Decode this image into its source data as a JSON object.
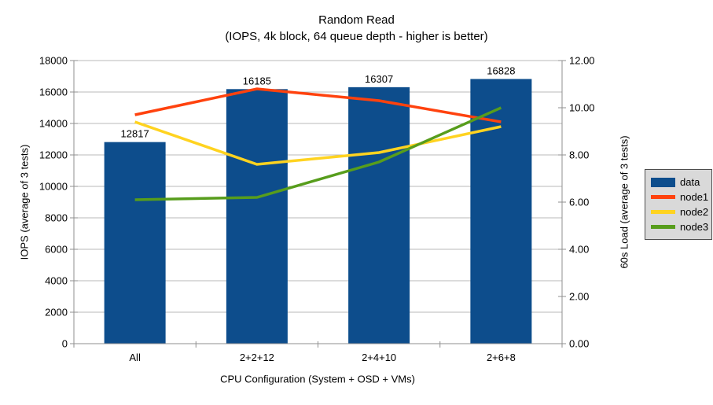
{
  "title": "Random Read",
  "subtitle": "(IOPS, 4k block, 64 queue depth - higher is better)",
  "chart_data": {
    "type": "combo-bar-line",
    "categories": [
      "All",
      "2+2+12",
      "2+4+10",
      "2+6+8"
    ],
    "bar_series": {
      "name": "data",
      "axis": "left",
      "color": "#0d4d8c",
      "values": [
        12817,
        16185,
        16307,
        16828
      ],
      "data_labels": [
        "12817",
        "16185",
        "16307",
        "16828"
      ]
    },
    "line_series": [
      {
        "name": "node1",
        "axis": "right",
        "color": "#ff420e",
        "values": [
          9.7,
          10.8,
          10.3,
          9.4
        ]
      },
      {
        "name": "node2",
        "axis": "right",
        "color": "#ffd320",
        "values": [
          9.4,
          7.6,
          8.1,
          9.2
        ]
      },
      {
        "name": "node3",
        "axis": "right",
        "color": "#579d1c",
        "values": [
          6.1,
          6.2,
          7.7,
          10.0
        ]
      }
    ],
    "left_axis": {
      "label": "IOPS (average of 3 tests)",
      "min": 0,
      "max": 18000,
      "step": 2000,
      "tick_labels": [
        "0",
        "2000",
        "4000",
        "6000",
        "8000",
        "10000",
        "12000",
        "14000",
        "16000",
        "18000"
      ]
    },
    "right_axis": {
      "label": "60s Load (average of 3 tests)",
      "min": 0,
      "max": 12,
      "step": 2,
      "tick_labels": [
        "0.00",
        "2.00",
        "4.00",
        "6.00",
        "8.00",
        "10.00",
        "12.00"
      ]
    },
    "x_axis": {
      "label": "CPU Configuration (System + OSD + VMs)"
    },
    "legend": {
      "position": "right",
      "entries": [
        "data",
        "node1",
        "node2",
        "node3"
      ]
    },
    "grid": true,
    "colors": {
      "grid": "#b8b8b8",
      "axis": "#8f8f8f",
      "legend_bg": "#d9d9d9",
      "legend_border": "#4d4d4d",
      "text": "#000000"
    }
  }
}
